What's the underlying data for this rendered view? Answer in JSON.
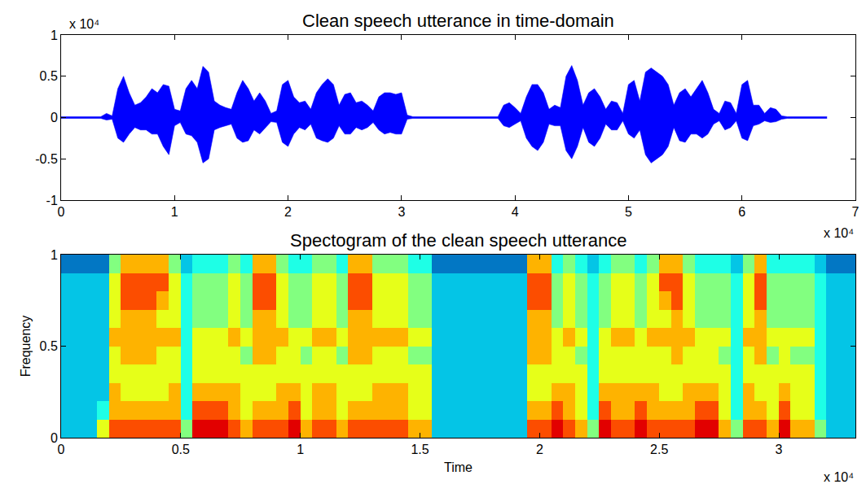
{
  "chart_data": [
    {
      "type": "area",
      "title": "Clean speech utterance in time-domain",
      "color": "#0000ff",
      "grid": false,
      "x_scale_label": "x 10⁴",
      "y_scale_label": "x 10⁴",
      "xlim": [
        0,
        7
      ],
      "xticks": [
        0,
        1,
        2,
        3,
        4,
        5,
        6,
        7
      ],
      "ylim": [
        -1,
        1
      ],
      "yticks": [
        -1,
        -0.5,
        0,
        0.5,
        1
      ],
      "x": [
        0,
        0.05,
        0.1,
        0.15,
        0.2,
        0.25,
        0.3,
        0.35,
        0.4,
        0.45,
        0.5,
        0.55,
        0.6,
        0.65,
        0.7,
        0.75,
        0.8,
        0.85,
        0.9,
        0.95,
        1,
        1.05,
        1.1,
        1.15,
        1.2,
        1.25,
        1.3,
        1.35,
        1.4,
        1.45,
        1.5,
        1.55,
        1.6,
        1.65,
        1.7,
        1.75,
        1.8,
        1.85,
        1.9,
        1.95,
        2,
        2.05,
        2.1,
        2.15,
        2.2,
        2.25,
        2.3,
        2.35,
        2.4,
        2.45,
        2.5,
        2.55,
        2.6,
        2.65,
        2.7,
        2.75,
        2.8,
        2.85,
        2.9,
        2.95,
        3,
        3.05,
        3.1,
        3.15,
        3.2,
        3.25,
        3.3,
        3.35,
        3.4,
        3.45,
        3.5,
        3.55,
        3.6,
        3.65,
        3.7,
        3.75,
        3.8,
        3.85,
        3.9,
        3.95,
        4,
        4.05,
        4.1,
        4.15,
        4.2,
        4.25,
        4.3,
        4.35,
        4.4,
        4.45,
        4.5,
        4.55,
        4.6,
        4.65,
        4.7,
        4.75,
        4.8,
        4.85,
        4.9,
        4.95,
        5,
        5.05,
        5.1,
        5.15,
        5.2,
        5.25,
        5.3,
        5.35,
        5.4,
        5.45,
        5.5,
        5.55,
        5.6,
        5.65,
        5.7,
        5.75,
        5.8,
        5.85,
        5.9,
        5.95,
        6,
        6.05,
        6.1,
        6.15,
        6.2,
        6.25,
        6.3,
        6.35,
        6.4,
        6.45,
        6.5,
        6.55,
        6.6,
        6.65,
        6.7,
        6.75
      ],
      "upper": [
        0.01,
        0.01,
        0.01,
        0.01,
        0.01,
        0.01,
        0.01,
        0.01,
        0.05,
        0.02,
        0.35,
        0.5,
        0.3,
        0.15,
        0.18,
        0.25,
        0.35,
        0.3,
        0.4,
        0.38,
        0.1,
        0.08,
        0.35,
        0.45,
        0.35,
        0.62,
        0.55,
        0.2,
        0.15,
        0.12,
        0.1,
        0.3,
        0.45,
        0.35,
        0.2,
        0.3,
        0.2,
        0.05,
        0.08,
        0.4,
        0.45,
        0.25,
        0.18,
        0.2,
        0.1,
        0.3,
        0.4,
        0.47,
        0.4,
        0.15,
        0.28,
        0.3,
        0.18,
        0.2,
        0.15,
        0.08,
        0.25,
        0.3,
        0.3,
        0.28,
        0.3,
        0.03,
        0.01,
        0.01,
        0.01,
        0.01,
        0.01,
        0.01,
        0.01,
        0.01,
        0.01,
        0.01,
        0.01,
        0.01,
        0.01,
        0.01,
        0.01,
        0.01,
        0.15,
        0.18,
        0.12,
        0.05,
        0.25,
        0.4,
        0.4,
        0.3,
        0.1,
        0.15,
        0.12,
        0.5,
        0.63,
        0.45,
        0.15,
        0.3,
        0.35,
        0.25,
        0.1,
        0.2,
        0.18,
        0.05,
        0.4,
        0.45,
        0.2,
        0.55,
        0.6,
        0.55,
        0.5,
        0.4,
        0.15,
        0.3,
        0.35,
        0.25,
        0.35,
        0.45,
        0.3,
        0.1,
        0.05,
        0.2,
        0.18,
        0.05,
        0.4,
        0.45,
        0.15,
        0.15,
        0.05,
        0.12,
        0.1,
        0.02,
        0.01,
        0.01,
        0.01,
        0.01,
        0.01,
        0.01,
        0.01,
        0.01
      ],
      "lower": [
        -0.01,
        -0.01,
        -0.01,
        -0.01,
        -0.01,
        -0.01,
        -0.01,
        -0.01,
        -0.03,
        -0.02,
        -0.25,
        -0.3,
        -0.2,
        -0.12,
        -0.15,
        -0.15,
        -0.2,
        -0.2,
        -0.35,
        -0.45,
        -0.1,
        -0.06,
        -0.2,
        -0.22,
        -0.3,
        -0.55,
        -0.5,
        -0.15,
        -0.12,
        -0.1,
        -0.08,
        -0.25,
        -0.3,
        -0.28,
        -0.15,
        -0.2,
        -0.12,
        -0.05,
        -0.06,
        -0.3,
        -0.35,
        -0.2,
        -0.12,
        -0.15,
        -0.08,
        -0.25,
        -0.28,
        -0.3,
        -0.25,
        -0.1,
        -0.2,
        -0.2,
        -0.12,
        -0.15,
        -0.12,
        -0.06,
        -0.15,
        -0.2,
        -0.18,
        -0.2,
        -0.2,
        -0.02,
        -0.01,
        -0.01,
        -0.01,
        -0.01,
        -0.01,
        -0.01,
        -0.01,
        -0.01,
        -0.01,
        -0.01,
        -0.01,
        -0.01,
        -0.01,
        -0.01,
        -0.01,
        -0.01,
        -0.1,
        -0.12,
        -0.08,
        -0.04,
        -0.25,
        -0.35,
        -0.4,
        -0.3,
        -0.08,
        -0.1,
        -0.1,
        -0.4,
        -0.5,
        -0.35,
        -0.12,
        -0.3,
        -0.35,
        -0.25,
        -0.08,
        -0.15,
        -0.15,
        -0.04,
        -0.2,
        -0.25,
        -0.15,
        -0.45,
        -0.55,
        -0.5,
        -0.45,
        -0.35,
        -0.12,
        -0.28,
        -0.3,
        -0.2,
        -0.2,
        -0.25,
        -0.2,
        -0.08,
        -0.04,
        -0.15,
        -0.12,
        -0.04,
        -0.25,
        -0.28,
        -0.1,
        -0.08,
        -0.04,
        -0.06,
        -0.05,
        -0.02,
        -0.01,
        -0.01,
        -0.01,
        -0.01,
        -0.01,
        -0.01,
        -0.01,
        -0.01
      ]
    },
    {
      "type": "heatmap",
      "title": "Spectogram of the clean speech utterance",
      "xlabel": "Time",
      "ylabel": "Frequency",
      "color": "Jet",
      "grid": false,
      "x_scale_label": "x 10⁴",
      "xlim": [
        0,
        3.32
      ],
      "xticks": [
        0,
        0.5,
        1,
        1.5,
        2,
        2.5,
        3
      ],
      "ylim": [
        0,
        1
      ],
      "yticks": [
        0,
        0.5,
        1
      ],
      "zlim": [
        0,
        10
      ],
      "x": [
        0.025,
        0.075,
        0.125,
        0.175,
        0.225,
        0.275,
        0.325,
        0.375,
        0.425,
        0.475,
        0.525,
        0.575,
        0.625,
        0.675,
        0.725,
        0.775,
        0.825,
        0.875,
        0.925,
        0.975,
        1.025,
        1.075,
        1.125,
        1.175,
        1.225,
        1.275,
        1.325,
        1.375,
        1.425,
        1.475,
        1.525,
        1.575,
        1.625,
        1.675,
        1.725,
        1.775,
        1.825,
        1.875,
        1.925,
        1.975,
        2.025,
        2.075,
        2.125,
        2.175,
        2.225,
        2.275,
        2.325,
        2.375,
        2.425,
        2.475,
        2.525,
        2.575,
        2.625,
        2.675,
        2.725,
        2.775,
        2.825,
        2.875,
        2.925,
        2.975,
        3.025,
        3.075,
        3.125,
        3.175,
        3.225,
        3.275,
        3.325,
        3.375
      ],
      "y": [
        0.05,
        0.15,
        0.25,
        0.35,
        0.45,
        0.55,
        0.65,
        0.75,
        0.85,
        0.95
      ],
      "z": [
        [
          3,
          3,
          3,
          6,
          8,
          8,
          8,
          8,
          8,
          8,
          5,
          9,
          9,
          9,
          8,
          7,
          8,
          8,
          8,
          9,
          7,
          8,
          8,
          7,
          8,
          8,
          8,
          8,
          8,
          7,
          7,
          3,
          3,
          3,
          3,
          3,
          3,
          3,
          3,
          8,
          8,
          9,
          8,
          7,
          5,
          9,
          8,
          8,
          9,
          8,
          8,
          8,
          8,
          9,
          9,
          7,
          5,
          8,
          8,
          7,
          9,
          7,
          7,
          5,
          3,
          3,
          3,
          3
        ],
        [
          3,
          3,
          3,
          4,
          7,
          7,
          7,
          7,
          7,
          7,
          4,
          8,
          8,
          8,
          7,
          6,
          7,
          7,
          7,
          8,
          6,
          7,
          7,
          6,
          7,
          7,
          7,
          7,
          7,
          6,
          6,
          3,
          3,
          3,
          3,
          3,
          3,
          3,
          3,
          7,
          7,
          8,
          7,
          6,
          4,
          8,
          7,
          7,
          8,
          7,
          7,
          7,
          7,
          8,
          8,
          6,
          4,
          7,
          7,
          6,
          8,
          6,
          6,
          4,
          3,
          3,
          3,
          3
        ],
        [
          3,
          3,
          3,
          3,
          7,
          6,
          6,
          6,
          6,
          7,
          4,
          7,
          7,
          7,
          7,
          6,
          6,
          6,
          7,
          7,
          6,
          7,
          7,
          6,
          6,
          6,
          7,
          7,
          7,
          6,
          6,
          3,
          3,
          3,
          3,
          3,
          3,
          3,
          3,
          6,
          6,
          7,
          7,
          6,
          4,
          7,
          7,
          7,
          7,
          7,
          6,
          6,
          7,
          7,
          7,
          6,
          4,
          7,
          6,
          6,
          7,
          6,
          6,
          4,
          3,
          3,
          3,
          3
        ],
        [
          3,
          3,
          3,
          3,
          6,
          6,
          6,
          6,
          6,
          6,
          4,
          6,
          6,
          6,
          6,
          6,
          6,
          6,
          6,
          6,
          6,
          6,
          6,
          6,
          6,
          6,
          6,
          6,
          6,
          6,
          6,
          3,
          3,
          3,
          3,
          3,
          3,
          3,
          3,
          6,
          6,
          6,
          6,
          6,
          4,
          6,
          6,
          6,
          6,
          6,
          6,
          6,
          6,
          6,
          6,
          6,
          4,
          6,
          6,
          6,
          6,
          6,
          6,
          4,
          3,
          3,
          3,
          3
        ],
        [
          3,
          3,
          3,
          3,
          6,
          7,
          7,
          7,
          6,
          6,
          4,
          6,
          6,
          6,
          6,
          5,
          7,
          7,
          6,
          6,
          5,
          6,
          6,
          5,
          7,
          7,
          6,
          6,
          6,
          5,
          5,
          3,
          3,
          3,
          3,
          3,
          3,
          3,
          3,
          7,
          7,
          6,
          6,
          5,
          4,
          6,
          6,
          6,
          6,
          6,
          6,
          7,
          6,
          6,
          6,
          5,
          4,
          6,
          7,
          5,
          6,
          5,
          5,
          4,
          3,
          3,
          3,
          3
        ],
        [
          3,
          3,
          3,
          3,
          7,
          7,
          7,
          7,
          7,
          7,
          4,
          6,
          6,
          6,
          7,
          6,
          7,
          7,
          7,
          6,
          6,
          7,
          7,
          6,
          7,
          7,
          7,
          7,
          7,
          6,
          6,
          3,
          3,
          3,
          3,
          3,
          3,
          3,
          3,
          7,
          7,
          6,
          7,
          6,
          4,
          6,
          7,
          7,
          6,
          7,
          7,
          7,
          7,
          6,
          6,
          6,
          4,
          7,
          7,
          6,
          6,
          6,
          6,
          4,
          3,
          3,
          3,
          3
        ],
        [
          3,
          3,
          3,
          3,
          6,
          7,
          7,
          7,
          6,
          6,
          4,
          5,
          5,
          5,
          6,
          5,
          7,
          7,
          6,
          5,
          5,
          6,
          6,
          5,
          7,
          7,
          6,
          6,
          6,
          5,
          5,
          3,
          3,
          3,
          3,
          3,
          3,
          3,
          3,
          7,
          7,
          5,
          6,
          5,
          4,
          5,
          6,
          6,
          5,
          6,
          6,
          7,
          6,
          5,
          5,
          5,
          4,
          6,
          7,
          5,
          5,
          5,
          5,
          4,
          3,
          3,
          3,
          3
        ],
        [
          3,
          3,
          3,
          3,
          6,
          8,
          8,
          8,
          7,
          6,
          4,
          5,
          5,
          5,
          6,
          5,
          8,
          8,
          6,
          5,
          5,
          6,
          6,
          5,
          8,
          8,
          6,
          6,
          6,
          5,
          5,
          3,
          3,
          3,
          3,
          3,
          3,
          3,
          3,
          8,
          8,
          5,
          6,
          5,
          4,
          5,
          6,
          6,
          5,
          6,
          7,
          8,
          6,
          5,
          5,
          5,
          4,
          6,
          8,
          5,
          5,
          5,
          5,
          4,
          3,
          3,
          3,
          3
        ],
        [
          3,
          3,
          3,
          3,
          6,
          8,
          8,
          8,
          8,
          6,
          4,
          5,
          5,
          5,
          6,
          5,
          8,
          8,
          6,
          5,
          5,
          6,
          6,
          5,
          8,
          8,
          6,
          6,
          6,
          5,
          5,
          3,
          3,
          3,
          3,
          3,
          3,
          3,
          3,
          8,
          8,
          5,
          6,
          5,
          4,
          5,
          6,
          6,
          5,
          6,
          8,
          8,
          6,
          5,
          5,
          5,
          4,
          6,
          8,
          5,
          5,
          5,
          5,
          4,
          3,
          3,
          3,
          3
        ],
        [
          2,
          2,
          2,
          2,
          5,
          7,
          7,
          7,
          7,
          5,
          3,
          4,
          4,
          4,
          5,
          4,
          7,
          7,
          5,
          4,
          4,
          5,
          5,
          4,
          7,
          7,
          5,
          5,
          5,
          4,
          4,
          2,
          2,
          2,
          2,
          2,
          2,
          2,
          2,
          7,
          7,
          4,
          5,
          4,
          3,
          4,
          5,
          5,
          4,
          5,
          7,
          7,
          5,
          4,
          4,
          4,
          3,
          5,
          7,
          4,
          4,
          4,
          4,
          3,
          2,
          2,
          2,
          2
        ]
      ]
    }
  ]
}
